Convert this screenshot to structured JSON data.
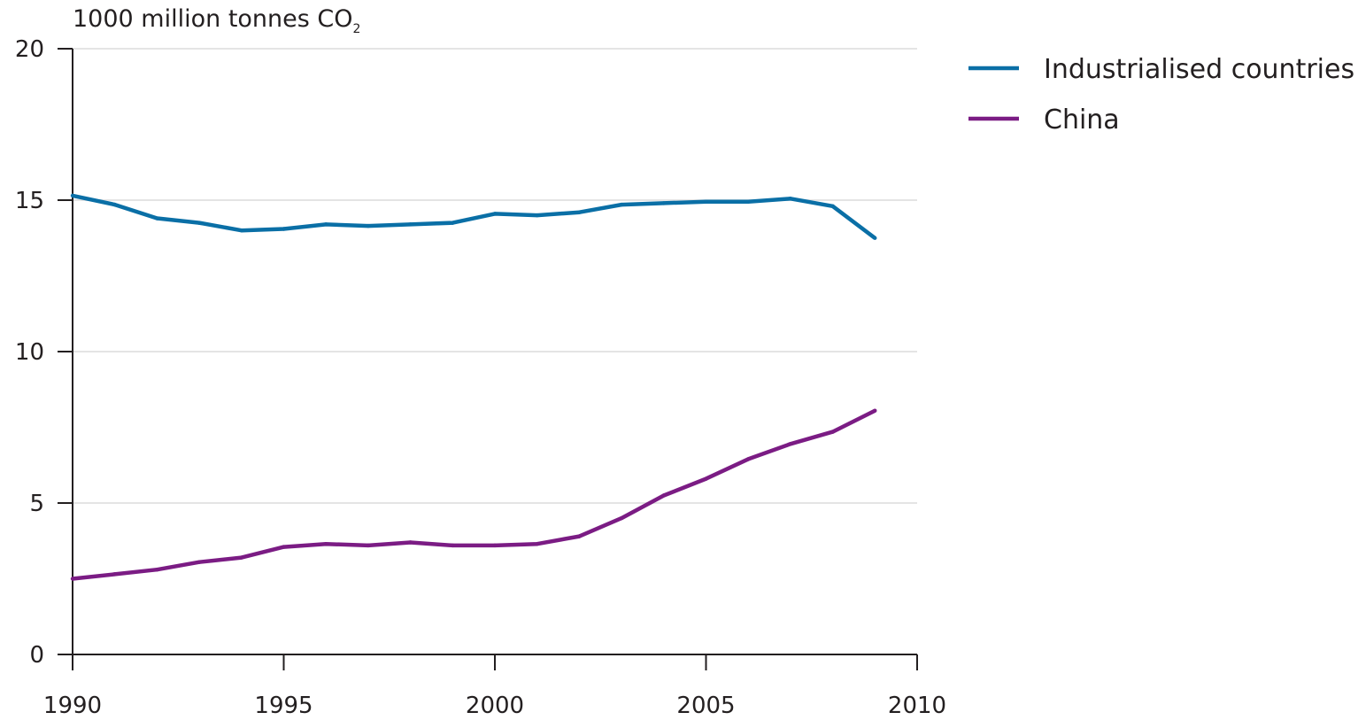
{
  "chart_data": {
    "type": "line",
    "unit_label": "1000 million tonnes CO",
    "unit_subscript": "2",
    "x": [
      1990,
      1991,
      1992,
      1993,
      1994,
      1995,
      1996,
      1997,
      1998,
      1999,
      2000,
      2001,
      2002,
      2003,
      2004,
      2005,
      2006,
      2007,
      2008,
      2009
    ],
    "xlim": [
      1990,
      2010
    ],
    "xticks": [
      "1990",
      "1995",
      "2000",
      "2005",
      "2010"
    ],
    "ylim": [
      0,
      20
    ],
    "yticks": [
      "0",
      "5",
      "10",
      "15",
      "20"
    ],
    "grid": "horizontal",
    "legend_position": "top-right",
    "series": [
      {
        "name": "Industrialised countries",
        "color": "#0a6fa6",
        "values": [
          15.15,
          14.85,
          14.4,
          14.25,
          14.0,
          14.05,
          14.2,
          14.15,
          14.2,
          14.25,
          14.55,
          14.5,
          14.6,
          14.85,
          14.9,
          14.95,
          14.95,
          15.05,
          14.8,
          13.75
        ]
      },
      {
        "name": "China",
        "color": "#7b1c84",
        "values": [
          2.5,
          2.65,
          2.8,
          3.05,
          3.2,
          3.55,
          3.65,
          3.6,
          3.7,
          3.6,
          3.6,
          3.65,
          3.9,
          4.5,
          5.25,
          5.8,
          6.45,
          6.95,
          7.35,
          8.05
        ]
      }
    ]
  }
}
